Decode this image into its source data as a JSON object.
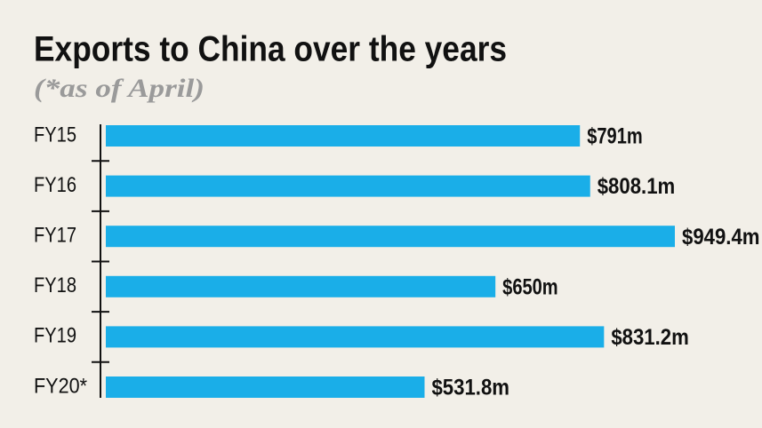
{
  "chart_data": {
    "type": "bar",
    "orientation": "horizontal",
    "title": "Exports to China over the years",
    "subtitle": "(*as of April)",
    "categories": [
      "FY15",
      "FY16",
      "FY17",
      "FY18",
      "FY19",
      "FY20*"
    ],
    "values": [
      791,
      808.1,
      949.4,
      650,
      831.2,
      531.8
    ],
    "value_labels": [
      "$791m",
      "$808.1m",
      "$949.4m",
      "$650m",
      "$831.2m",
      "$531.8m"
    ],
    "color": "#1aaee8"
  }
}
